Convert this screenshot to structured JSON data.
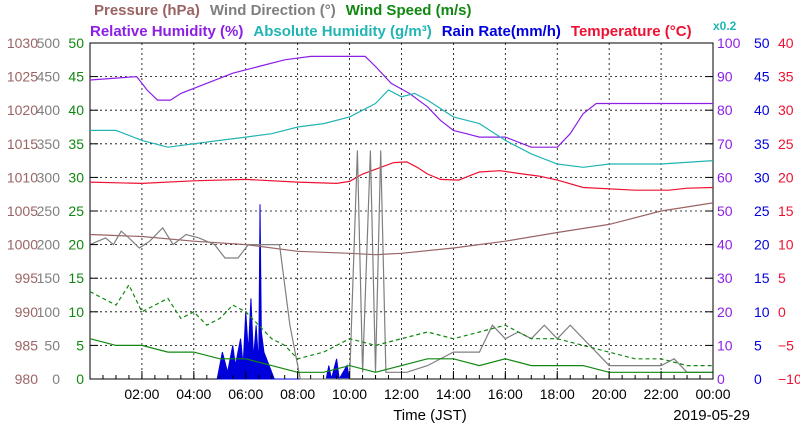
{
  "chart_data": {
    "type": "line",
    "date": "2019-05-29",
    "xlabel": "Time (JST)",
    "x_ticks": [
      "02:00",
      "04:00",
      "06:00",
      "08:00",
      "10:00",
      "12:00",
      "14:00",
      "16:00",
      "18:00",
      "20:00",
      "22:00",
      "00:00"
    ],
    "xlim_hours": [
      0,
      24
    ],
    "grid": true,
    "header": {
      "row1": [
        {
          "text": "Pressure (hPa)",
          "color": "#9b6464"
        },
        {
          "text": "Wind Direction (°)",
          "color": "#7f7f7f"
        },
        {
          "text": "Wind Speed (m/s)",
          "color": "#118811"
        }
      ],
      "row2": [
        {
          "text": "Relative Humidity (%)",
          "color": "#8c1fe6"
        },
        {
          "text": "Absolute Humidity (g/m³)",
          "color": "#23b4b4"
        },
        {
          "text": "Rain Rate(mm/h)",
          "color": "#0000dd"
        },
        {
          "text": "Temperature (°C)",
          "color": "#ee1133"
        }
      ],
      "scale_note": {
        "text": "x0.2",
        "color": "#23b4b4"
      }
    },
    "left_axes": [
      {
        "name": "pressure",
        "color": "#9b6464",
        "ticks": [
          "1030",
          "1025",
          "1020",
          "1015",
          "1010",
          "1005",
          "1000",
          "995",
          "990",
          "985",
          "980"
        ],
        "range": [
          980,
          1030
        ]
      },
      {
        "name": "wind-direction",
        "color": "#7f7f7f",
        "ticks": [
          "500",
          "450",
          "400",
          "350",
          "300",
          "250",
          "200",
          "150",
          "100",
          "50",
          "0"
        ],
        "range": [
          0,
          500
        ]
      },
      {
        "name": "wind-speed",
        "color": "#118811",
        "ticks": [
          "50",
          "45",
          "40",
          "35",
          "30",
          "25",
          "20",
          "15",
          "10",
          "5",
          "0"
        ],
        "range": [
          0,
          50
        ]
      }
    ],
    "right_axes": [
      {
        "name": "relative-humidity",
        "color": "#8c1fe6",
        "ticks": [
          "100",
          "90",
          "80",
          "70",
          "60",
          "50",
          "40",
          "30",
          "20",
          "10",
          "0"
        ],
        "range": [
          0,
          100
        ]
      },
      {
        "name": "rain-rate",
        "color": "#0000dd",
        "ticks": [
          "50",
          "45",
          "40",
          "35",
          "30",
          "25",
          "20",
          "15",
          "10",
          "5",
          "0"
        ],
        "range": [
          0,
          50
        ]
      },
      {
        "name": "temperature",
        "color": "#ee1133",
        "ticks": [
          "40",
          "35",
          "30",
          "25",
          "20",
          "15",
          "10",
          "5",
          "0",
          "−5",
          "−10"
        ],
        "range": [
          -10,
          40
        ]
      }
    ],
    "series": [
      {
        "name": "Relative Humidity",
        "axis": "relative-humidity",
        "color": "#8c1fe6",
        "points": [
          [
            0,
            89
          ],
          [
            1.8,
            90
          ],
          [
            2.2,
            86
          ],
          [
            2.6,
            83
          ],
          [
            3.1,
            83
          ],
          [
            3.5,
            85
          ],
          [
            4.5,
            88
          ],
          [
            5.5,
            91
          ],
          [
            6.5,
            93
          ],
          [
            7.5,
            95
          ],
          [
            8.5,
            96
          ],
          [
            10,
            96
          ],
          [
            10.6,
            96
          ],
          [
            11,
            93
          ],
          [
            11.6,
            88
          ],
          [
            12.3,
            85
          ],
          [
            13,
            81
          ],
          [
            13.5,
            77
          ],
          [
            14,
            74
          ],
          [
            14.5,
            73
          ],
          [
            15,
            72
          ],
          [
            16,
            72
          ],
          [
            17,
            69
          ],
          [
            18,
            69
          ],
          [
            18.5,
            73
          ],
          [
            19,
            79
          ],
          [
            19.5,
            82
          ],
          [
            20,
            82
          ],
          [
            24,
            82
          ]
        ]
      },
      {
        "name": "Absolute Humidity",
        "axis": "relative-humidity",
        "color": "#23b4b4",
        "points": [
          [
            0,
            74
          ],
          [
            1,
            74
          ],
          [
            2,
            71
          ],
          [
            3,
            69
          ],
          [
            4,
            70
          ],
          [
            5,
            71
          ],
          [
            6,
            72
          ],
          [
            7,
            73
          ],
          [
            8,
            75
          ],
          [
            9,
            76
          ],
          [
            10,
            78
          ],
          [
            11,
            82
          ],
          [
            11.5,
            86
          ],
          [
            12,
            84
          ],
          [
            12.5,
            85
          ],
          [
            13,
            83
          ],
          [
            14,
            78
          ],
          [
            15,
            76
          ],
          [
            16,
            71
          ],
          [
            17,
            67
          ],
          [
            18,
            64
          ],
          [
            19,
            63
          ],
          [
            20,
            64
          ],
          [
            22,
            64
          ],
          [
            24,
            65
          ]
        ]
      },
      {
        "name": "Temperature",
        "axis": "temperature",
        "color": "#ee1133",
        "points": [
          [
            0,
            19.3
          ],
          [
            2,
            19.1
          ],
          [
            4,
            19.5
          ],
          [
            6,
            19.7
          ],
          [
            8,
            19.3
          ],
          [
            9.5,
            19.1
          ],
          [
            10,
            19.4
          ],
          [
            10.5,
            20.5
          ],
          [
            11,
            21.2
          ],
          [
            11.7,
            22.2
          ],
          [
            12.2,
            22.3
          ],
          [
            12.6,
            21.5
          ],
          [
            13,
            20.5
          ],
          [
            13.5,
            19.7
          ],
          [
            14.2,
            19.6
          ],
          [
            15,
            20.8
          ],
          [
            15.8,
            21.0
          ],
          [
            16.5,
            20.6
          ],
          [
            17.3,
            20.2
          ],
          [
            18,
            19.6
          ],
          [
            19,
            18.5
          ],
          [
            21,
            18.1
          ],
          [
            22.3,
            18.1
          ],
          [
            23,
            18.4
          ],
          [
            24,
            18.5
          ]
        ]
      },
      {
        "name": "Pressure",
        "axis": "pressure",
        "color": "#9b6464",
        "points": [
          [
            0,
            1001.5
          ],
          [
            2,
            1001.2
          ],
          [
            4,
            1000.5
          ],
          [
            6,
            1000.0
          ],
          [
            8,
            999.0
          ],
          [
            10,
            998.7
          ],
          [
            11,
            998.5
          ],
          [
            12,
            998.7
          ],
          [
            14,
            999.5
          ],
          [
            16,
            1000.5
          ],
          [
            18,
            1001.8
          ],
          [
            20,
            1003.0
          ],
          [
            22,
            1005.0
          ],
          [
            24,
            1006.2
          ]
        ]
      },
      {
        "name": "Wind Direction",
        "axis": "wind-direction",
        "color": "#7f7f7f",
        "points": [
          [
            0,
            200
          ],
          [
            0.6,
            210
          ],
          [
            0.9,
            200
          ],
          [
            1.2,
            220
          ],
          [
            1.5,
            210
          ],
          [
            1.9,
            195
          ],
          [
            2.3,
            205
          ],
          [
            2.8,
            225
          ],
          [
            3.2,
            200
          ],
          [
            3.7,
            215
          ],
          [
            4.2,
            210
          ],
          [
            4.8,
            200
          ],
          [
            5.2,
            180
          ],
          [
            5.7,
            180
          ],
          [
            6.1,
            200
          ],
          [
            6.7,
            200
          ],
          [
            7.3,
            200
          ],
          [
            7.7,
            80
          ],
          [
            8.1,
            0
          ],
          [
            9,
            0
          ],
          [
            10,
            0
          ],
          [
            10.3,
            340
          ],
          [
            10.5,
            10
          ],
          [
            10.8,
            340
          ],
          [
            11.0,
            10
          ],
          [
            11.2,
            340
          ],
          [
            11.4,
            10
          ],
          [
            11.8,
            10
          ],
          [
            12.2,
            10
          ],
          [
            13,
            20
          ],
          [
            14,
            40
          ],
          [
            15,
            40
          ],
          [
            15.5,
            80
          ],
          [
            16,
            60
          ],
          [
            16.5,
            70
          ],
          [
            17,
            60
          ],
          [
            17.5,
            80
          ],
          [
            18,
            60
          ],
          [
            18.5,
            80
          ],
          [
            19,
            60
          ],
          [
            19.5,
            40
          ],
          [
            20,
            20
          ],
          [
            21,
            20
          ],
          [
            22,
            20
          ],
          [
            22.5,
            30
          ],
          [
            23,
            10
          ],
          [
            24,
            10
          ]
        ]
      },
      {
        "name": "Wind Speed",
        "axis": "wind-speed",
        "color": "#118811",
        "points": [
          [
            0,
            6
          ],
          [
            1,
            5
          ],
          [
            2,
            5
          ],
          [
            3,
            4
          ],
          [
            4,
            4
          ],
          [
            5,
            3
          ],
          [
            6,
            3
          ],
          [
            7,
            2
          ],
          [
            8,
            1
          ],
          [
            9,
            1
          ],
          [
            10,
            2
          ],
          [
            11,
            1
          ],
          [
            12,
            2
          ],
          [
            13,
            3
          ],
          [
            14,
            3
          ],
          [
            15,
            2
          ],
          [
            16,
            3
          ],
          [
            17,
            2
          ],
          [
            18,
            2
          ],
          [
            19,
            2
          ],
          [
            20,
            1
          ],
          [
            21,
            1
          ],
          [
            22,
            1
          ],
          [
            23,
            1
          ],
          [
            24,
            1
          ]
        ]
      },
      {
        "name": "Wind Speed (gust)",
        "axis": "wind-speed",
        "color": "#118811",
        "dashed": true,
        "points": [
          [
            0,
            13
          ],
          [
            0.5,
            12
          ],
          [
            1,
            11
          ],
          [
            1.5,
            14
          ],
          [
            2,
            10
          ],
          [
            2.5,
            11
          ],
          [
            3,
            12
          ],
          [
            3.5,
            9
          ],
          [
            4,
            10
          ],
          [
            4.5,
            8
          ],
          [
            5,
            9
          ],
          [
            5.5,
            11
          ],
          [
            6,
            10
          ],
          [
            6.5,
            8
          ],
          [
            7,
            6
          ],
          [
            7.5,
            5
          ],
          [
            8,
            3
          ],
          [
            9,
            4
          ],
          [
            10,
            6
          ],
          [
            11,
            5
          ],
          [
            12,
            6
          ],
          [
            13,
            7
          ],
          [
            14,
            6
          ],
          [
            15,
            7
          ],
          [
            16,
            8
          ],
          [
            17,
            6
          ],
          [
            18,
            6
          ],
          [
            19,
            5
          ],
          [
            20,
            4
          ],
          [
            21,
            3
          ],
          [
            22,
            3
          ],
          [
            23,
            2
          ],
          [
            24,
            2
          ]
        ]
      }
    ],
    "rain_rate": {
      "name": "Rain Rate",
      "axis": "rain-rate",
      "color": "#0000dd",
      "points": [
        [
          4.9,
          0
        ],
        [
          5.1,
          4
        ],
        [
          5.3,
          1
        ],
        [
          5.5,
          5
        ],
        [
          5.6,
          2
        ],
        [
          5.8,
          6
        ],
        [
          5.9,
          2
        ],
        [
          6.0,
          10
        ],
        [
          6.1,
          4
        ],
        [
          6.2,
          12
        ],
        [
          6.3,
          3
        ],
        [
          6.4,
          8
        ],
        [
          6.5,
          2
        ],
        [
          6.55,
          26
        ],
        [
          6.6,
          7
        ],
        [
          6.7,
          4
        ],
        [
          6.9,
          2
        ],
        [
          7.1,
          0
        ],
        [
          9.1,
          0
        ],
        [
          9.2,
          2
        ],
        [
          9.3,
          0
        ],
        [
          9.5,
          3
        ],
        [
          9.6,
          0
        ],
        [
          9.9,
          2
        ],
        [
          10.0,
          0
        ]
      ]
    }
  }
}
